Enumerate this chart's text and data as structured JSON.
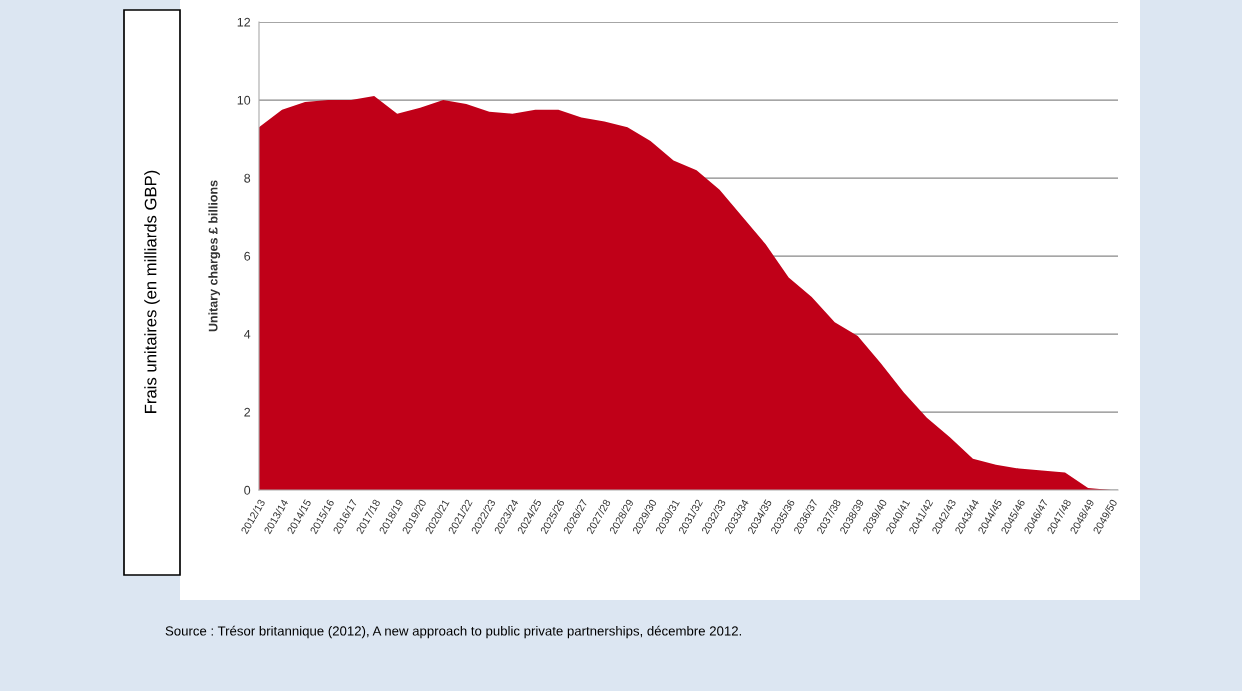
{
  "chart_data": {
    "type": "area",
    "ylabel": "Unitary charges £ billions",
    "categories": [
      "2012/13",
      "2013/14",
      "2014/15",
      "2015/16",
      "2016/17",
      "2017/18",
      "2018/19",
      "2019/20",
      "2020/21",
      "2021/22",
      "2022/23",
      "2023/24",
      "2024/25",
      "2025/26",
      "2026/27",
      "2027/28",
      "2028/29",
      "2029/30",
      "2030/31",
      "2031/32",
      "2032/33",
      "2033/34",
      "2034/35",
      "2035/36",
      "2036/37",
      "2037/38",
      "2038/39",
      "2039/40",
      "2040/41",
      "2041/42",
      "2042/43",
      "2043/44",
      "2044/45",
      "2045/46",
      "2046/47",
      "2047/48",
      "2048/49",
      "2049/50"
    ],
    "series": [
      {
        "color": "#c00018",
        "values": [
          9.3,
          9.75,
          9.95,
          10.0,
          10.0,
          10.1,
          9.65,
          9.8,
          10.0,
          9.9,
          9.7,
          9.65,
          9.75,
          9.75,
          9.55,
          9.45,
          9.3,
          8.95,
          8.45,
          8.2,
          7.7,
          7.0,
          6.3,
          5.45,
          4.95,
          4.3,
          3.95,
          3.25,
          2.5,
          1.85,
          1.35,
          0.8,
          0.65,
          0.55,
          0.5,
          0.45,
          0.05,
          0
        ]
      }
    ],
    "ylim": [
      0,
      12
    ],
    "yticks": [
      0,
      2,
      4,
      6,
      8,
      10,
      12
    ],
    "grid": "y",
    "legend": false,
    "annotations": [
      "Frais unitaires (en milliards GBP)",
      "Source : Trésor britannique (2012), A new approach to public private partnerships, décembre 2012."
    ]
  }
}
